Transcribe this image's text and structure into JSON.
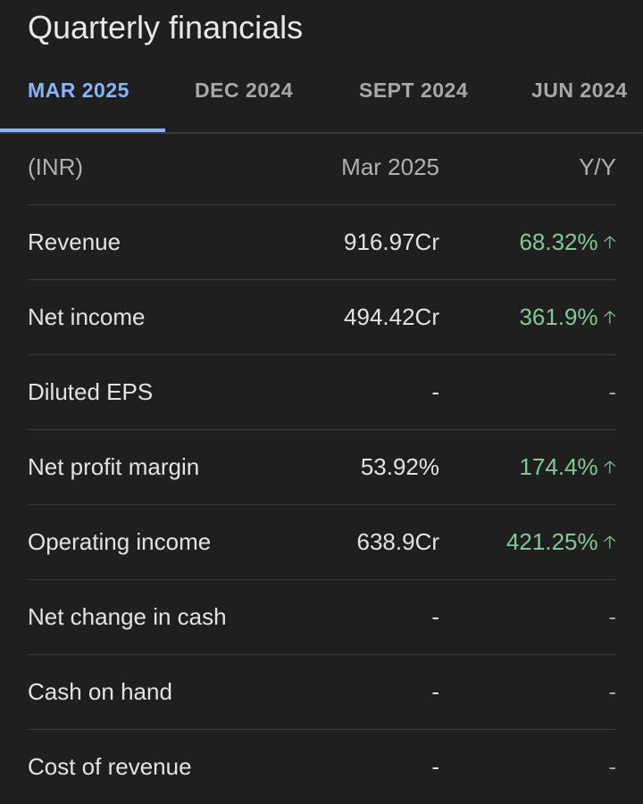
{
  "title": "Quarterly financials",
  "tabs": [
    {
      "label": "MAR 2025",
      "active": true
    },
    {
      "label": "DEC 2024",
      "active": false
    },
    {
      "label": "SEPT 2024",
      "active": false
    },
    {
      "label": "JUN 2024",
      "active": false
    }
  ],
  "table": {
    "header": {
      "currency": "(INR)",
      "period": "Mar 2025",
      "change": "Y/Y"
    },
    "rows": [
      {
        "label": "Revenue",
        "value": "916.97Cr",
        "yy": "68.32%",
        "trend": "up"
      },
      {
        "label": "Net income",
        "value": "494.42Cr",
        "yy": "361.9%",
        "trend": "up"
      },
      {
        "label": "Diluted EPS",
        "value": "-",
        "yy": "-",
        "trend": ""
      },
      {
        "label": "Net profit margin",
        "value": "53.92%",
        "yy": "174.4%",
        "trend": "up"
      },
      {
        "label": "Operating income",
        "value": "638.9Cr",
        "yy": "421.25%",
        "trend": "up"
      },
      {
        "label": "Net change in cash",
        "value": "-",
        "yy": "-",
        "trend": ""
      },
      {
        "label": "Cash on hand",
        "value": "-",
        "yy": "-",
        "trend": ""
      },
      {
        "label": "Cost of revenue",
        "value": "-",
        "yy": "-",
        "trend": ""
      }
    ]
  },
  "colors": {
    "accent": "#8ab4f8",
    "positive": "#81c995",
    "background": "#1f1f1f"
  }
}
